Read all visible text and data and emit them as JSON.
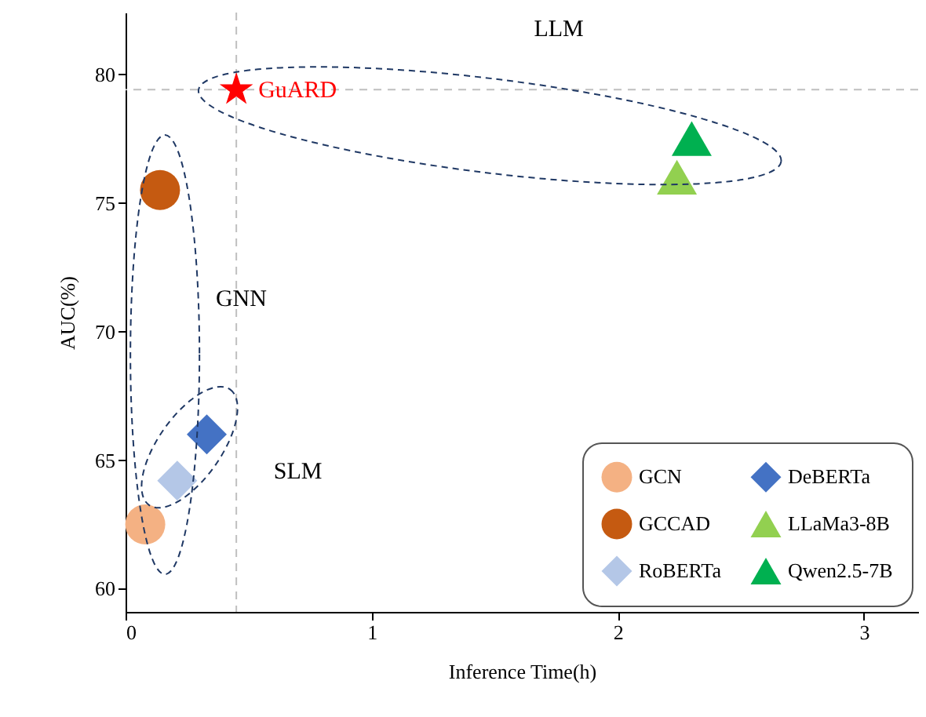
{
  "chart_data": {
    "type": "scatter",
    "xlabel": "Inference Time(h)",
    "ylabel": "AUC(%)",
    "xlim": [
      0,
      3.22
    ],
    "ylim": [
      59.1,
      82.4
    ],
    "xticks": [
      0,
      1,
      2,
      3
    ],
    "yticks": [
      60,
      65,
      70,
      75,
      80
    ],
    "grid": false,
    "legend": "bottom right",
    "series": [
      {
        "name": "GCN",
        "color": "#f4b183",
        "marker": "circle",
        "x": [
          0.08
        ],
        "values": [
          62.5
        ]
      },
      {
        "name": "GCCAD",
        "color": "#c55a11",
        "marker": "circle",
        "x": [
          0.14
        ],
        "values": [
          75.5
        ]
      },
      {
        "name": "RoBERTa",
        "color": "#b4c7e7",
        "marker": "diamond",
        "x": [
          0.21
        ],
        "values": [
          64.2
        ]
      },
      {
        "name": "DeBERTa",
        "color": "#4472c4",
        "marker": "diamond",
        "x": [
          0.33
        ],
        "values": [
          66.0
        ]
      },
      {
        "name": "LLaMa3-8B",
        "color": "#92d050",
        "marker": "triangle",
        "x": [
          2.24
        ],
        "values": [
          76.0
        ]
      },
      {
        "name": "Qwen2.5-7B",
        "color": "#00b050",
        "marker": "triangle",
        "x": [
          2.3
        ],
        "values": [
          77.5
        ]
      },
      {
        "color": "#ff0000",
        "marker": "star",
        "x": [
          0.45
        ],
        "values": [
          79.4
        ]
      }
    ],
    "ref_lines": [
      {
        "axis": "x",
        "value": 0.45,
        "color": "#bfbfbf",
        "line_style": "dashed"
      },
      {
        "axis": "y",
        "value": 79.4,
        "color": "#bfbfbf",
        "line_style": "dashed"
      }
    ],
    "annotations": [
      {
        "text": "GuARD",
        "x": 0.45,
        "y": 79.4
      },
      "LLM",
      "GNN",
      "SLM"
    ]
  }
}
